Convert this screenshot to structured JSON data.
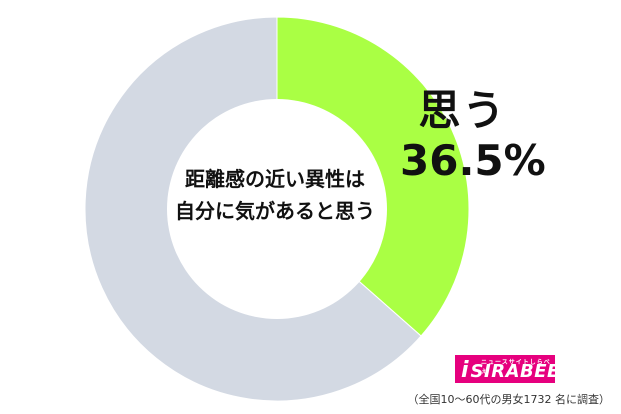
{
  "chart_data": {
    "type": "pie",
    "style": "donut",
    "center_label_lines": [
      "距離感の近い異性は",
      "自分に気があると思う"
    ],
    "slices": [
      {
        "label": "思う",
        "value": 36.5,
        "value_label": "36.5%",
        "color": "#aaff44"
      },
      {
        "value": 63.5,
        "color": "#d3d9e3"
      }
    ],
    "start": "top",
    "direction": "clockwise"
  },
  "logo": {
    "tagline": "ニュースサイトしらべぇ",
    "mark": "i",
    "wordmark": "SIRABEE"
  },
  "footnote": "（全国10〜60代の男女1732 名に調査）"
}
